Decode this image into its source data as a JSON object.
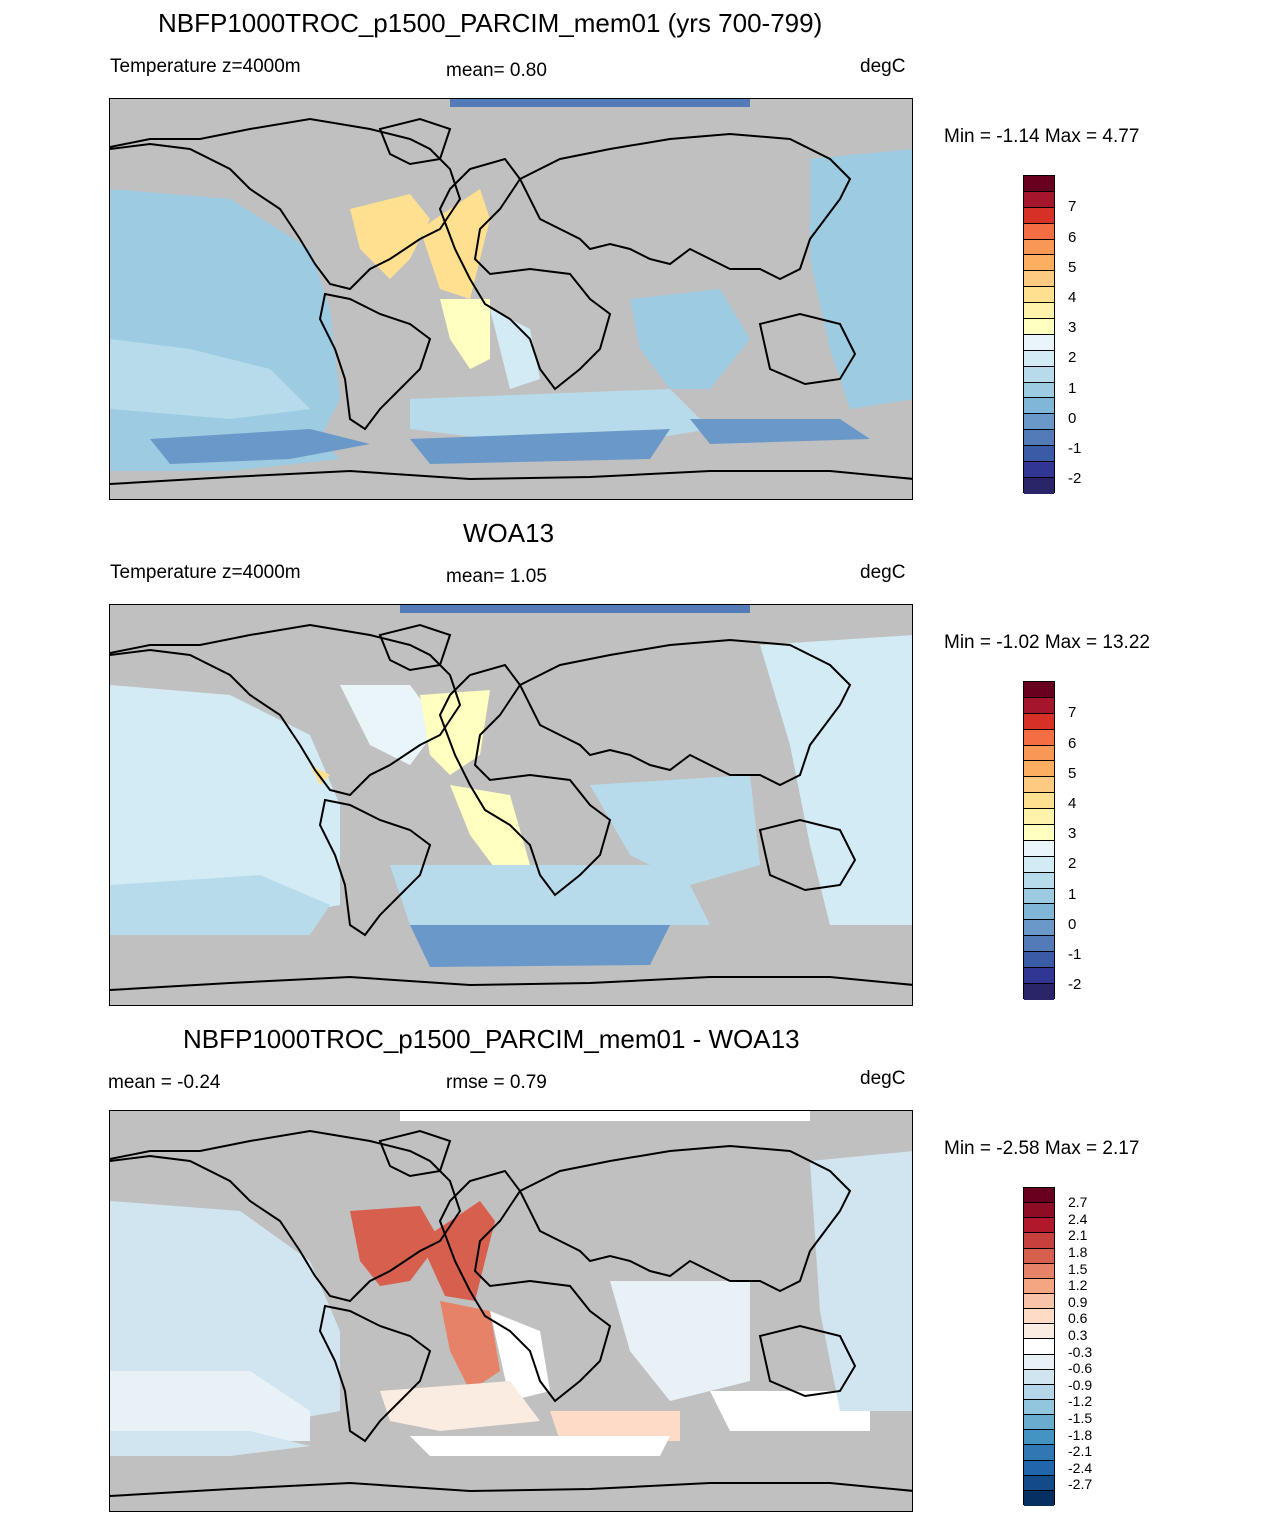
{
  "panels": [
    {
      "title": "NBFP1000TROC_p1500_PARCIM_mem01 (yrs 700-799)",
      "left_label": "Temperature z=4000m",
      "center_label": "mean=   0.80",
      "right_label": "degC",
      "minmax": "Min =  -1.14 Max =   4.77",
      "colorbar_labels": [
        "7",
        "6",
        "5",
        "4",
        "3",
        "2",
        "1",
        "0",
        "-1",
        "-2"
      ],
      "colorbar_colors": [
        "#67001f",
        "#a5152b",
        "#d73027",
        "#f46d43",
        "#f99854",
        "#fdae61",
        "#fec980",
        "#fee090",
        "#fff3ac",
        "#ffffbf",
        "#e9f5f8",
        "#d3ebf5",
        "#b8dbeb",
        "#9ccbe2",
        "#80b6d8",
        "#6a99c9",
        "#527bb8",
        "#3a5ba6",
        "#313695",
        "#2a2468"
      ]
    },
    {
      "title": "WOA13",
      "left_label": "Temperature z=4000m",
      "center_label": "mean=   1.05",
      "right_label": "degC",
      "minmax": "Min =  -1.02 Max =  13.22",
      "colorbar_labels": [
        "7",
        "6",
        "5",
        "4",
        "3",
        "2",
        "1",
        "0",
        "-1",
        "-2"
      ],
      "colorbar_colors": [
        "#67001f",
        "#a5152b",
        "#d73027",
        "#f46d43",
        "#f99854",
        "#fdae61",
        "#fec980",
        "#fee090",
        "#fff3ac",
        "#ffffbf",
        "#e9f5f8",
        "#d3ebf5",
        "#b8dbeb",
        "#9ccbe2",
        "#80b6d8",
        "#6a99c9",
        "#527bb8",
        "#3a5ba6",
        "#313695",
        "#2a2468"
      ]
    },
    {
      "title": "NBFP1000TROC_p1500_PARCIM_mem01 - WOA13",
      "left_label": "mean =  -0.24",
      "center_label": "rmse =   0.79",
      "right_label": "degC",
      "minmax": "Min =  -2.58 Max =   2.17",
      "colorbar_labels": [
        "2.7",
        "2.4",
        "2.1",
        "1.8",
        "1.5",
        "1.2",
        "0.9",
        "0.6",
        "0.3",
        "-0.3",
        "-0.6",
        "-0.9",
        "-1.2",
        "-1.5",
        "-1.8",
        "-2.1",
        "-2.4",
        "-2.7"
      ],
      "colorbar_colors": [
        "#67001f",
        "#8e0d25",
        "#b2182b",
        "#c7403e",
        "#d6604d",
        "#e58267",
        "#f4a582",
        "#f8c3a6",
        "#fddbc7",
        "#fbece2",
        "#ffffff",
        "#e8f1f6",
        "#d1e5f0",
        "#b5d6e8",
        "#92c5de",
        "#6aacd0",
        "#4393c3",
        "#2f78b4",
        "#2166ac",
        "#124b87",
        "#053061"
      ]
    }
  ],
  "colors": {
    "land": "#c0c0c0",
    "coast": "#000000"
  }
}
